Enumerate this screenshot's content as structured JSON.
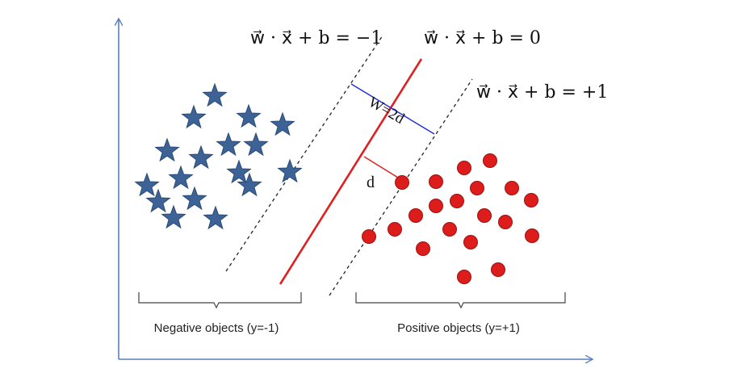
{
  "equations": {
    "negative_margin": "w⃗ · x⃗ + b = −1",
    "decision_boundary": "w⃗ · x⃗ + b = 0",
    "positive_margin": "w⃗ · x⃗ + b = +1"
  },
  "labels": {
    "margin_width": "W=2d",
    "half_margin": "d",
    "negative_group": "Negative objects (y=-1)",
    "positive_group": "Positive objects (y=+1)"
  },
  "colors": {
    "axis": "#5b7fb8",
    "boundary": "#e02020",
    "margin_lines": "#222222",
    "width_marker": "#2233dd",
    "half_marker": "#e02020",
    "star_fill": "#3c6296",
    "star_stroke": "#2a4a78",
    "circle_fill": "#dd1c1c",
    "circle_stroke": "#a01010",
    "brace": "#444444"
  },
  "items": {
    "negative_objects": {
      "shape": "star",
      "count": 17
    },
    "positive_objects": {
      "shape": "circle",
      "count": 20
    }
  }
}
